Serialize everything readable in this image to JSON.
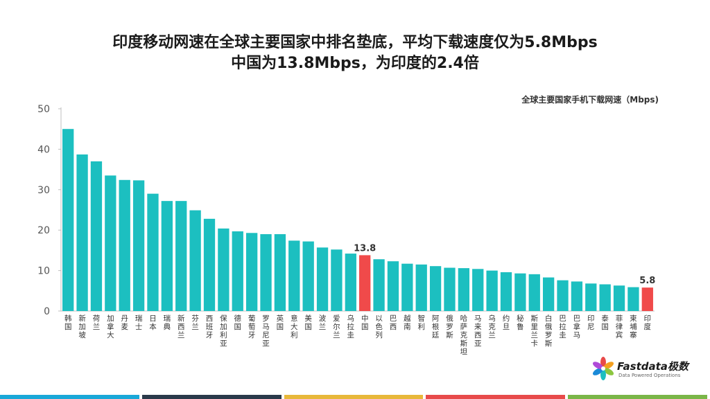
{
  "title_line1": "印度移动网速在全球主要国家中排名垫底，平均下载速度仅为5.8Mbps",
  "title_line2": "中国为13.8Mbps，为印度的2.4倍",
  "brand": {
    "name": "Fastdata极数",
    "tagline": "Data Powered Operations"
  },
  "colors": {
    "bar": "#1cbfc0",
    "highlight": "#f04a4a",
    "stripes": [
      "#1aa8d8",
      "#2a3a4a",
      "#e8b83a",
      "#e84a4a",
      "#7ab648"
    ]
  },
  "chart_data": {
    "type": "bar",
    "title": "全球主要国家手机下载网速（Mbps)",
    "ylim": [
      0,
      50
    ],
    "yticks": [
      0,
      10,
      20,
      30,
      40,
      50
    ],
    "grid": false,
    "categories": [
      "韩国",
      "新加坡",
      "荷兰",
      "加拿大",
      "丹麦",
      "瑞士",
      "日本",
      "瑞典",
      "新西兰",
      "芬兰",
      "西班牙",
      "保加利亚",
      "德国",
      "葡萄牙",
      "罗马尼亚",
      "英国",
      "意大利",
      "美国",
      "波兰",
      "爱尔兰",
      "乌拉圭",
      "中国",
      "以色列",
      "巴西",
      "越南",
      "智利",
      "阿根廷",
      "俄罗斯",
      "哈萨克斯坦",
      "马来西亚",
      "乌克兰",
      "约旦",
      "秘鲁",
      "斯里兰卡",
      "白俄罗斯",
      "巴拉圭",
      "巴拿马",
      "印尼",
      "泰国",
      "菲律宾",
      "柬埔寨",
      "印度"
    ],
    "values": [
      45.0,
      38.7,
      37.0,
      33.5,
      32.4,
      32.3,
      29.0,
      27.2,
      27.2,
      24.9,
      22.8,
      20.4,
      19.7,
      19.3,
      19.0,
      19.0,
      17.4,
      17.2,
      15.7,
      15.2,
      14.2,
      13.8,
      12.8,
      12.3,
      11.7,
      11.5,
      11.1,
      10.7,
      10.6,
      10.4,
      10.0,
      9.6,
      9.3,
      9.1,
      8.3,
      7.6,
      7.3,
      6.8,
      6.6,
      6.3,
      5.9,
      5.8
    ],
    "highlight": [
      "中国",
      "印度"
    ],
    "data_labels": {
      "中国": "13.8",
      "印度": "5.8"
    }
  }
}
